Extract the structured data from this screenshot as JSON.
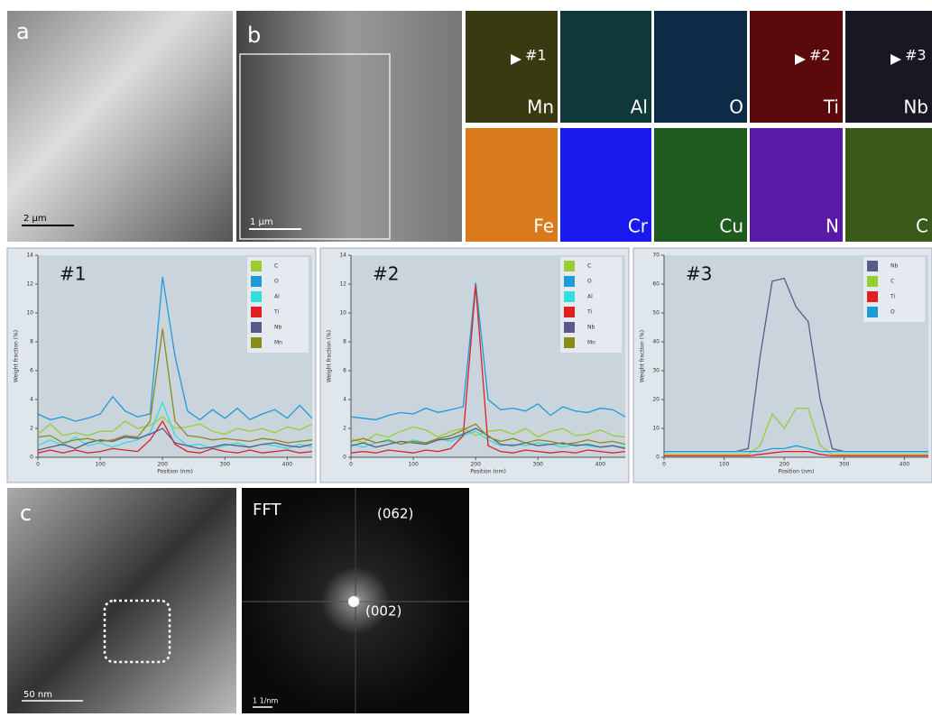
{
  "panels": {
    "a": {
      "label": "a",
      "scale_bar": "2 µm"
    },
    "b": {
      "label": "b",
      "scale_bar": "1 µm"
    },
    "maps": [
      {
        "element": "Mn",
        "marker": "#1"
      },
      {
        "element": "Al"
      },
      {
        "element": "O"
      },
      {
        "element": "Ti",
        "marker": "#2"
      },
      {
        "element": "Nb",
        "marker": "#3"
      },
      {
        "element": "Fe"
      },
      {
        "element": "Cr"
      },
      {
        "element": "Cu"
      },
      {
        "element": "N"
      },
      {
        "element": "C"
      }
    ],
    "c": {
      "label": "c",
      "scale_bar": "50 nm"
    },
    "fft": {
      "label": "FFT",
      "scale_bar": "1 1/nm",
      "spots": [
        "(062)",
        "(002)"
      ]
    }
  },
  "chart_data": [
    {
      "type": "line",
      "title": "#1",
      "xlabel": "Position (nm)",
      "ylabel": "Weight fraction (%)",
      "xlim": [
        0,
        440
      ],
      "xticks": [
        0,
        100,
        200,
        300,
        400
      ],
      "ylim": [
        0,
        14
      ],
      "yticks": [
        0,
        2,
        4,
        6,
        8,
        10,
        12,
        14
      ],
      "x": [
        0,
        20,
        40,
        60,
        80,
        100,
        120,
        140,
        160,
        180,
        200,
        220,
        240,
        260,
        280,
        300,
        320,
        340,
        360,
        380,
        400,
        420,
        440
      ],
      "series": [
        {
          "name": "C",
          "color": "#9acd32",
          "values": [
            1.6,
            2.3,
            1.5,
            1.7,
            1.5,
            1.8,
            1.8,
            2.5,
            2.0,
            2.2,
            2.8,
            2.0,
            2.1,
            2.3,
            1.8,
            1.6,
            2.0,
            1.8,
            2.0,
            1.7,
            2.1,
            1.9,
            2.3
          ]
        },
        {
          "name": "O",
          "color": "#1f9bd7",
          "values": [
            3.0,
            2.6,
            2.8,
            2.5,
            2.7,
            3.0,
            4.2,
            3.2,
            2.8,
            3.0,
            12.5,
            7.0,
            3.2,
            2.6,
            3.3,
            2.7,
            3.4,
            2.6,
            3.0,
            3.3,
            2.7,
            3.6,
            2.7
          ]
        },
        {
          "name": "Al",
          "color": "#33dddd",
          "values": [
            0.8,
            1.2,
            0.8,
            1.4,
            0.8,
            1.0,
            0.7,
            1.0,
            1.2,
            1.7,
            3.8,
            1.5,
            0.8,
            0.9,
            0.6,
            0.8,
            1.0,
            0.7,
            0.9,
            0.8,
            0.6,
            0.9,
            0.7
          ]
        },
        {
          "name": "Ti",
          "color": "#e02020",
          "values": [
            0.3,
            0.5,
            0.3,
            0.5,
            0.3,
            0.4,
            0.6,
            0.5,
            0.4,
            1.2,
            2.5,
            0.9,
            0.4,
            0.3,
            0.6,
            0.4,
            0.3,
            0.5,
            0.3,
            0.4,
            0.5,
            0.3,
            0.4
          ]
        },
        {
          "name": "Nb",
          "color": "#5a5a8a",
          "values": [
            0.5,
            0.7,
            0.9,
            0.6,
            1.0,
            1.2,
            1.1,
            1.4,
            1.3,
            1.6,
            2.0,
            1.0,
            0.8,
            0.6,
            0.7,
            0.9,
            0.8,
            0.7,
            0.9,
            1.0,
            0.8,
            0.7,
            0.9
          ]
        },
        {
          "name": "Mn",
          "color": "#8b8b1a",
          "values": [
            1.4,
            1.5,
            1.0,
            1.2,
            1.3,
            1.1,
            1.2,
            1.5,
            1.4,
            2.5,
            8.9,
            2.5,
            1.5,
            1.4,
            1.2,
            1.3,
            1.2,
            1.1,
            1.3,
            1.2,
            1.0,
            1.1,
            1.2
          ]
        }
      ]
    },
    {
      "type": "line",
      "title": "#2",
      "xlabel": "Position (nm)",
      "ylabel": "Weight fraction (%)",
      "xlim": [
        0,
        440
      ],
      "xticks": [
        0,
        100,
        200,
        300,
        400
      ],
      "ylim": [
        0,
        14
      ],
      "yticks": [
        0,
        2,
        4,
        6,
        8,
        10,
        12,
        14
      ],
      "x": [
        0,
        20,
        40,
        60,
        80,
        100,
        120,
        140,
        160,
        180,
        200,
        220,
        240,
        260,
        280,
        300,
        320,
        340,
        360,
        380,
        400,
        420,
        440
      ],
      "series": [
        {
          "name": "C",
          "color": "#9acd32",
          "values": [
            1.3,
            1.0,
            1.6,
            1.4,
            1.8,
            2.1,
            1.9,
            1.4,
            1.8,
            2.0,
            1.5,
            1.8,
            1.9,
            1.6,
            2.0,
            1.4,
            1.8,
            2.0,
            1.5,
            1.6,
            1.9,
            1.5,
            1.4
          ]
        },
        {
          "name": "O",
          "color": "#1f9bd7",
          "values": [
            2.8,
            2.7,
            2.6,
            2.9,
            3.1,
            3.0,
            3.4,
            3.1,
            3.3,
            3.5,
            12.1,
            4.0,
            3.3,
            3.4,
            3.2,
            3.7,
            2.9,
            3.5,
            3.2,
            3.1,
            3.4,
            3.3,
            2.8
          ]
        },
        {
          "name": "Al",
          "color": "#33dddd",
          "values": [
            0.9,
            0.7,
            1.0,
            1.1,
            0.9,
            1.2,
            1.0,
            1.3,
            1.1,
            1.5,
            1.8,
            1.2,
            0.8,
            0.9,
            0.8,
            1.0,
            0.9,
            0.7,
            0.9,
            0.8,
            0.7,
            0.8,
            0.7
          ]
        },
        {
          "name": "Ti",
          "color": "#e02020",
          "values": [
            0.3,
            0.4,
            0.3,
            0.5,
            0.4,
            0.3,
            0.5,
            0.4,
            0.6,
            1.5,
            11.9,
            0.8,
            0.4,
            0.3,
            0.5,
            0.4,
            0.3,
            0.4,
            0.3,
            0.5,
            0.4,
            0.3,
            0.4
          ]
        },
        {
          "name": "Nb",
          "color": "#5a5a8a",
          "values": [
            0.8,
            1.0,
            0.7,
            0.9,
            1.1,
            1.0,
            0.9,
            1.2,
            1.3,
            1.6,
            2.0,
            1.5,
            0.9,
            0.8,
            1.0,
            0.8,
            0.9,
            1.0,
            0.8,
            0.9,
            0.7,
            0.8,
            0.6
          ]
        },
        {
          "name": "Mn",
          "color": "#8b8b1a",
          "values": [
            1.1,
            1.3,
            1.0,
            1.2,
            0.9,
            1.1,
            1.0,
            1.3,
            1.5,
            1.9,
            2.3,
            1.4,
            1.1,
            1.3,
            1.0,
            1.2,
            1.1,
            0.9,
            1.0,
            1.2,
            1.0,
            1.1,
            0.9
          ]
        }
      ]
    },
    {
      "type": "line",
      "title": "#3",
      "xlabel": "Position (nm)",
      "ylabel": "Weight fraction (%)",
      "xlim": [
        0,
        440
      ],
      "xticks": [
        0,
        100,
        200,
        300,
        400
      ],
      "ylim": [
        0,
        70
      ],
      "yticks": [
        0,
        10,
        20,
        30,
        40,
        50,
        60,
        70
      ],
      "x": [
        0,
        20,
        40,
        60,
        80,
        100,
        120,
        140,
        160,
        180,
        200,
        220,
        240,
        260,
        280,
        300,
        320,
        340,
        360,
        380,
        400,
        420,
        440
      ],
      "series": [
        {
          "name": "Nb",
          "color": "#5a5a8a",
          "values": [
            2,
            2,
            2,
            2,
            2,
            2,
            2,
            3,
            35,
            61,
            62,
            52,
            47,
            20,
            3,
            2,
            2,
            2,
            2,
            2,
            2,
            2,
            2
          ]
        },
        {
          "name": "C",
          "color": "#9acd32",
          "values": [
            1,
            1,
            1,
            1,
            1,
            1,
            1,
            1,
            4,
            15,
            10,
            17,
            17,
            4,
            1,
            1,
            1,
            1,
            1,
            1,
            1,
            1,
            1
          ]
        },
        {
          "name": "Ti",
          "color": "#e02020",
          "values": [
            0.5,
            0.5,
            0.5,
            0.5,
            0.5,
            0.5,
            0.5,
            0.5,
            1,
            1.5,
            2,
            2,
            2,
            1,
            0.5,
            0.5,
            0.5,
            0.5,
            0.5,
            0.5,
            0.5,
            0.5,
            0.5
          ]
        },
        {
          "name": "O",
          "color": "#1f9bd7",
          "values": [
            2,
            2,
            2,
            2,
            2,
            2,
            2,
            2,
            2,
            3,
            3,
            4,
            3,
            2,
            2,
            2,
            2,
            2,
            2,
            2,
            2,
            2,
            2
          ]
        }
      ]
    }
  ]
}
